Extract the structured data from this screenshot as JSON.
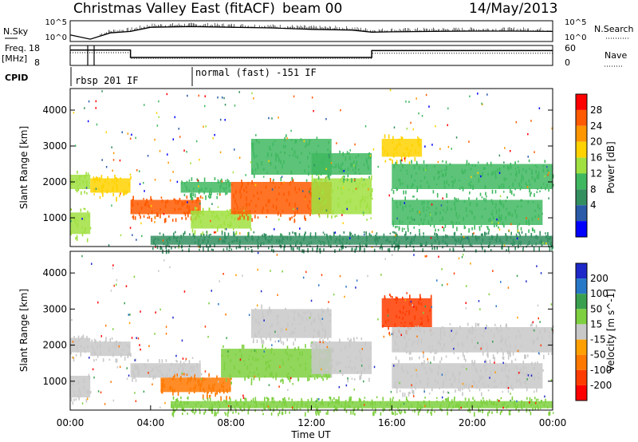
{
  "header": {
    "title": "Christmas Valley East (fitACF)",
    "beam": "beam 00",
    "date": "14/May/2013"
  },
  "top_panels": {
    "nsky_label": "N.Sky",
    "nsky_ticks": [
      "10^5",
      "10^0"
    ],
    "nsearch_label": "N.Search",
    "nsearch_ticks": [
      "10^5",
      "10^0"
    ],
    "freq_label": "Freq.",
    "freq_unit": "[MHz]",
    "freq_ticks": [
      "18",
      "8"
    ],
    "nave_label": "Nave",
    "nave_ticks": [
      "60",
      "0"
    ],
    "cpid_label": "CPID",
    "cpid_modes": [
      {
        "label": "rbsp 201 IF",
        "start_h": 0.0,
        "end_h": 6.0
      },
      {
        "label": "normal (fast) -151 IF",
        "start_h": 6.0,
        "end_h": 24.0
      }
    ]
  },
  "colorbars": {
    "power": {
      "label": "Power [dB]",
      "ticks": [
        "28",
        "24",
        "20",
        "16",
        "12",
        "8",
        "4"
      ],
      "colors": [
        "#ff0000",
        "#ff5a00",
        "#ff9600",
        "#ffd200",
        "#a0e040",
        "#40b860",
        "#338f60",
        "#2a5aa8",
        "#0000ff"
      ]
    },
    "velocity": {
      "label": "Velocity [m s^-1]",
      "ticks": [
        "200",
        "100",
        "50",
        "15",
        "-15",
        "-50",
        "-100",
        "-200"
      ],
      "colors": [
        "#1e28c8",
        "#2878c8",
        "#3aa050",
        "#7ed040",
        "#c8c8c8",
        "#ffa000",
        "#ff7800",
        "#ff3c00",
        "#ff0000"
      ]
    }
  },
  "chart_data": [
    {
      "type": "line",
      "title": "N.Sky",
      "x": [
        0,
        1,
        2,
        3,
        4,
        6,
        8,
        10,
        12,
        14,
        15,
        16,
        18,
        20,
        22,
        24
      ],
      "series": [
        {
          "name": "N.Sky",
          "values": [
            1.4,
            0.2,
            2.0,
            2.4,
            3.6,
            3.8,
            3.6,
            3.4,
            3.0,
            2.8,
            2.2,
            2.3,
            2.4,
            2.5,
            2.5,
            2.4
          ]
        }
      ],
      "ylim": [
        0,
        5
      ],
      "xlim": [
        0,
        24
      ]
    },
    {
      "type": "line",
      "title": "Freq.",
      "x": [
        0,
        3,
        3,
        15,
        15,
        24
      ],
      "series": [
        {
          "name": "Freq.",
          "values": [
            16.6,
            16.6,
            12.0,
            12.0,
            16.3,
            16.3
          ]
        },
        {
          "name": "Nave",
          "values": [
            42,
            42,
            20,
            20,
            40,
            40
          ]
        }
      ],
      "ylim": [
        8,
        18
      ],
      "xlim": [
        0,
        24
      ]
    },
    {
      "type": "heatmap",
      "title": "Power",
      "xlabel": "",
      "ylabel": "Slant Range [km]",
      "xlim": [
        0,
        24
      ],
      "ylim": [
        200,
        4600
      ],
      "yticks": [
        "4000",
        "3000",
        "2000",
        "1000"
      ],
      "ytick_values": [
        4000,
        3000,
        2000,
        1000
      ],
      "bands": [
        {
          "t0": 0.0,
          "t1": 1.0,
          "r0": 1800,
          "r1": 2200,
          "value": 12
        },
        {
          "t0": 0.0,
          "t1": 1.0,
          "r0": 550,
          "r1": 1150,
          "value": 14
        },
        {
          "t0": 1.0,
          "t1": 3.0,
          "r0": 1700,
          "r1": 2100,
          "value": 18
        },
        {
          "t0": 3.0,
          "t1": 6.5,
          "r0": 1100,
          "r1": 1500,
          "value": 26
        },
        {
          "t0": 5.5,
          "t1": 8.0,
          "r0": 1700,
          "r1": 2000,
          "value": 10
        },
        {
          "t0": 6.0,
          "t1": 9.0,
          "r0": 700,
          "r1": 1200,
          "value": 14
        },
        {
          "t0": 8.0,
          "t1": 13.0,
          "r0": 1100,
          "r1": 2000,
          "value": 24
        },
        {
          "t0": 9.0,
          "t1": 13.0,
          "r0": 2200,
          "r1": 3200,
          "value": 10
        },
        {
          "t0": 12.0,
          "t1": 15.0,
          "r0": 1100,
          "r1": 2100,
          "value": 14
        },
        {
          "t0": 12.0,
          "t1": 15.0,
          "r0": 2200,
          "r1": 2800,
          "value": 8
        },
        {
          "t0": 15.5,
          "t1": 17.5,
          "r0": 2700,
          "r1": 3200,
          "value": 16
        },
        {
          "t0": 16.0,
          "t1": 24.0,
          "r0": 1800,
          "r1": 2500,
          "value": 8
        },
        {
          "t0": 16.0,
          "t1": 23.5,
          "r0": 800,
          "r1": 1500,
          "value": 10
        },
        {
          "t0": 4.0,
          "t1": 24.0,
          "r0": 250,
          "r1": 500,
          "value": 6
        }
      ]
    },
    {
      "type": "heatmap",
      "title": "Velocity",
      "xlabel": "Time UT",
      "ylabel": "Slant Range [km]",
      "xlim": [
        0,
        24
      ],
      "ylim": [
        200,
        4600
      ],
      "yticks": [
        "4000",
        "3000",
        "2000",
        "1000"
      ],
      "ytick_values": [
        4000,
        3000,
        2000,
        1000
      ],
      "xticks": [
        "00:00",
        "04:00",
        "08:00",
        "12:00",
        "16:00",
        "20:00",
        "00:00"
      ],
      "xtick_values": [
        0,
        4,
        8,
        12,
        16,
        20,
        24
      ],
      "bands": [
        {
          "t0": 0.0,
          "t1": 1.0,
          "r0": 1800,
          "r1": 2200,
          "value": 0
        },
        {
          "t0": 0.0,
          "t1": 1.0,
          "r0": 550,
          "r1": 1150,
          "value": 0
        },
        {
          "t0": 1.0,
          "t1": 3.0,
          "r0": 1700,
          "r1": 2100,
          "value": 0
        },
        {
          "t0": 3.0,
          "t1": 6.5,
          "r0": 1100,
          "r1": 1500,
          "value": 0
        },
        {
          "t0": 4.5,
          "t1": 8.0,
          "r0": 700,
          "r1": 1100,
          "value": -60
        },
        {
          "t0": 7.5,
          "t1": 13.0,
          "r0": 1100,
          "r1": 1900,
          "value": 30
        },
        {
          "t0": 9.0,
          "t1": 13.0,
          "r0": 2200,
          "r1": 3000,
          "value": 0
        },
        {
          "t0": 12.0,
          "t1": 15.0,
          "r0": 1200,
          "r1": 2100,
          "value": 0
        },
        {
          "t0": 15.5,
          "t1": 18.0,
          "r0": 2500,
          "r1": 3300,
          "value": -200
        },
        {
          "t0": 16.0,
          "t1": 24.0,
          "r0": 1800,
          "r1": 2500,
          "value": 0
        },
        {
          "t0": 16.0,
          "t1": 23.5,
          "r0": 800,
          "r1": 1500,
          "value": 0
        },
        {
          "t0": 5.0,
          "t1": 24.0,
          "r0": 250,
          "r1": 450,
          "value": 30
        }
      ]
    }
  ]
}
